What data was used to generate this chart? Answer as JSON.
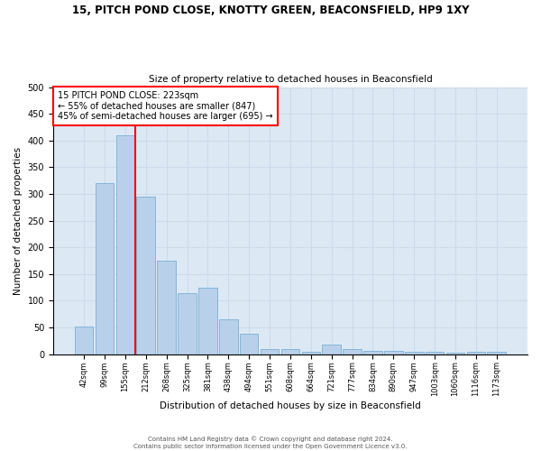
{
  "title": "15, PITCH POND CLOSE, KNOTTY GREEN, BEACONSFIELD, HP9 1XY",
  "subtitle": "Size of property relative to detached houses in Beaconsfield",
  "xlabel": "Distribution of detached houses by size in Beaconsfield",
  "ylabel": "Number of detached properties",
  "footer_line1": "Contains HM Land Registry data © Crown copyright and database right 2024.",
  "footer_line2": "Contains public sector information licensed under the Open Government Licence v3.0.",
  "categories": [
    "42sqm",
    "99sqm",
    "155sqm",
    "212sqm",
    "268sqm",
    "325sqm",
    "381sqm",
    "438sqm",
    "494sqm",
    "551sqm",
    "608sqm",
    "664sqm",
    "721sqm",
    "777sqm",
    "834sqm",
    "890sqm",
    "947sqm",
    "1003sqm",
    "1060sqm",
    "1116sqm",
    "1173sqm"
  ],
  "values": [
    52,
    320,
    410,
    295,
    175,
    115,
    125,
    65,
    38,
    10,
    10,
    5,
    18,
    10,
    7,
    7,
    4,
    4,
    2,
    4,
    4
  ],
  "bar_color": "#b8d0ea",
  "bar_edge_color": "#7bafd4",
  "grid_color": "#ccdaea",
  "background_color": "#dce9f5",
  "property_label": "15 PITCH POND CLOSE: 223sqm",
  "annotation_line1": "← 55% of detached houses are smaller (847)",
  "annotation_line2": "45% of semi-detached houses are larger (695) →",
  "vline_x_index": 2.5,
  "ylim": [
    0,
    500
  ],
  "yticks": [
    0,
    50,
    100,
    150,
    200,
    250,
    300,
    350,
    400,
    450,
    500
  ]
}
